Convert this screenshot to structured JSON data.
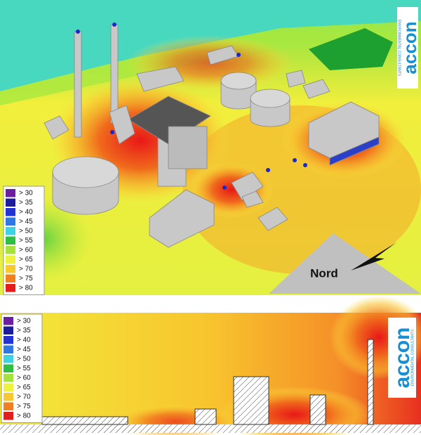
{
  "top_view": {
    "legend": [
      {
        "label": "> 30",
        "color": "#6a1fa0"
      },
      {
        "label": "> 35",
        "color": "#1c1c9c"
      },
      {
        "label": "> 40",
        "color": "#2233d6"
      },
      {
        "label": "> 45",
        "color": "#2f78e4"
      },
      {
        "label": "> 50",
        "color": "#3fd2e2"
      },
      {
        "label": "> 55",
        "color": "#2fbf44"
      },
      {
        "label": "> 60",
        "color": "#a6e23e"
      },
      {
        "label": "> 65",
        "color": "#ecf23e"
      },
      {
        "label": "> 70",
        "color": "#f8c92e"
      },
      {
        "label": "> 75",
        "color": "#f07f1f"
      },
      {
        "label": "> 80",
        "color": "#e01e1e"
      }
    ],
    "north_label": "Nord",
    "logo": {
      "name": "accon",
      "tagline": "ENVIRONMENTAL CONSULTANTS"
    }
  },
  "section_view": {
    "legend": [
      {
        "label": "> 30",
        "color": "#6a1fa0"
      },
      {
        "label": "> 35",
        "color": "#1c1c9c"
      },
      {
        "label": "> 40",
        "color": "#2233d6"
      },
      {
        "label": "> 45",
        "color": "#2f78e4"
      },
      {
        "label": "> 50",
        "color": "#3fd2e2"
      },
      {
        "label": "> 55",
        "color": "#2fbf44"
      },
      {
        "label": "> 60",
        "color": "#a6e23e"
      },
      {
        "label": "> 65",
        "color": "#ecf23e"
      },
      {
        "label": "> 70",
        "color": "#f8c92e"
      },
      {
        "label": "> 75",
        "color": "#f07f1f"
      },
      {
        "label": "> 80",
        "color": "#e01e1e"
      }
    ],
    "logo": {
      "name": "accon",
      "tagline": "ENVIRONMENTAL CONSULTANTS"
    }
  }
}
